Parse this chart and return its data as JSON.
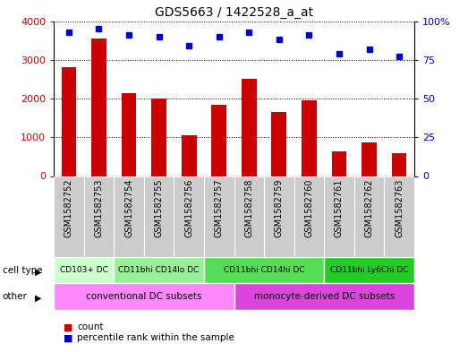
{
  "title": "GDS5663 / 1422528_a_at",
  "samples": [
    "GSM1582752",
    "GSM1582753",
    "GSM1582754",
    "GSM1582755",
    "GSM1582756",
    "GSM1582757",
    "GSM1582758",
    "GSM1582759",
    "GSM1582760",
    "GSM1582761",
    "GSM1582762",
    "GSM1582763"
  ],
  "counts": [
    2800,
    3550,
    2150,
    2000,
    1050,
    1850,
    2500,
    1650,
    1950,
    625,
    875,
    600
  ],
  "percentiles": [
    93,
    95,
    91,
    90,
    84,
    90,
    93,
    88,
    91,
    79,
    82,
    77
  ],
  "bar_color": "#cc0000",
  "dot_color": "#0000cc",
  "left_ylim": [
    0,
    4000
  ],
  "right_ylim": [
    0,
    100
  ],
  "left_yticks": [
    0,
    1000,
    2000,
    3000,
    4000
  ],
  "right_yticks": [
    0,
    25,
    50,
    75,
    100
  ],
  "right_yticklabels": [
    "0",
    "25",
    "50",
    "75",
    "100%"
  ],
  "cell_type_groups": [
    {
      "label": "CD103+ DC",
      "start": 0,
      "end": 2,
      "color": "#ccffcc"
    },
    {
      "label": "CD11bhi CD14lo DC",
      "start": 2,
      "end": 5,
      "color": "#99ee99"
    },
    {
      "label": "CD11bhi CD14hi DC",
      "start": 5,
      "end": 9,
      "color": "#55dd55"
    },
    {
      "label": "CD11bhi Ly6Chi DC",
      "start": 9,
      "end": 12,
      "color": "#22cc22"
    }
  ],
  "other_groups": [
    {
      "label": "conventional DC subsets",
      "start": 0,
      "end": 6,
      "color": "#ff88ff"
    },
    {
      "label": "monocyte-derived DC subsets",
      "start": 6,
      "end": 12,
      "color": "#dd44dd"
    }
  ],
  "cell_type_label": "cell type",
  "other_label": "other",
  "legend_count_label": "count",
  "legend_pct_label": "percentile rank within the sample",
  "background_color": "#ffffff",
  "grid_color": "#000000",
  "sample_box_color": "#cccccc"
}
